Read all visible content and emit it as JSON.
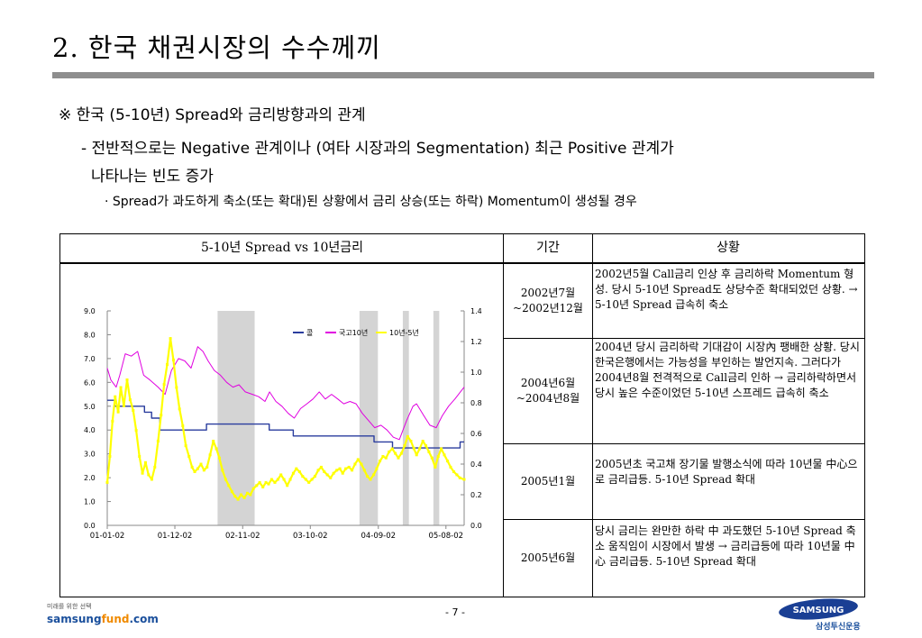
{
  "title": "2. 한국 채권시장의 수수께끼",
  "bullets": {
    "l1": "※ 한국 (5-10년) Spread와 금리방향과의 관계",
    "l2": "- 전반적으로는 Negative 관계이나 (여타 시장과의 Segmentation) 최근 Positive 관계가",
    "l3": "나타나는 빈도 증가",
    "l4": "· Spread가 과도하게 축소(또는 확대)된 상황에서 금리 상승(또는 하락) Momentum이 생성될 경우"
  },
  "table": {
    "headers": [
      "5-10년 Spread vs 10년금리",
      "기간",
      "상황"
    ],
    "rows": [
      {
        "period": "2002년7월\n~2002년12월",
        "desc": "2002년5월 Call금리 인상 후 금리하락 Momentum 형성. 당시 5-10년 Spread도 상당수준 확대되었던 상황. → 5-10년 Spread 급속히 축소"
      },
      {
        "period": "2004년6월\n~2004년8월",
        "desc": "2004년 당시 금리하락 기대감이 시장內 팽배한 상황. 당시 한국은행에서는 가능성을 부인하는 발언지속. 그러다가 2004년8월 전격적으로 Call금리 인하 → 금리하락하면서 당시 높은 수준이었던 5-10년 스프레드 급속히 축소"
      },
      {
        "period": "2005년1월",
        "desc": "2005년초 국고채 장기물 발행소식에 따라 10년물 中心으로 금리급등. 5-10년 Spread 확대"
      },
      {
        "period": "2005년6월",
        "desc": "당시 금리는 완만한 하락 中 과도했던 5-10년 Spread 축소 움직임이 시장에서 발생 → 금리급등에 따라 10년물 中心 금리급등. 5-10년 Spread 확대"
      }
    ]
  },
  "chart_data": {
    "type": "line",
    "x_ticks": [
      "01-01-02",
      "01-12-02",
      "02-11-02",
      "03-10-02",
      "04-09-02",
      "05-08-02"
    ],
    "y_left_ticks": [
      "0.0",
      "1.0",
      "2.0",
      "3.0",
      "4.0",
      "5.0",
      "6.0",
      "7.0",
      "8.0",
      "9.0"
    ],
    "y_right_ticks": [
      "0.0",
      "0.2",
      "0.4",
      "0.6",
      "0.8",
      "1.0",
      "1.2",
      "1.4"
    ],
    "ylim_left": [
      0,
      9
    ],
    "ylim_right": [
      0,
      1.4
    ],
    "xlim": [
      "2001-01-02",
      "2005-10-31"
    ],
    "legend": [
      "콜",
      "국고10년",
      "10년-5년"
    ],
    "legend_position": "top-right",
    "shaded_periods": [
      [
        "2002-07-01",
        "2002-12-31"
      ],
      [
        "2004-06-01",
        "2004-08-31"
      ],
      [
        "2005-01-01",
        "2005-01-31"
      ],
      [
        "2005-06-01",
        "2005-06-30"
      ]
    ],
    "series": [
      {
        "name": "콜",
        "axis": "left",
        "color": "#2a3d9e",
        "step": true,
        "points": [
          [
            "2001-01-02",
            5.25
          ],
          [
            "2001-02-08",
            5.0
          ],
          [
            "2001-04-01",
            5.0
          ],
          [
            "2001-07-05",
            4.75
          ],
          [
            "2001-08-09",
            4.5
          ],
          [
            "2001-09-19",
            4.0
          ],
          [
            "2002-05-07",
            4.25
          ],
          [
            "2003-03-13",
            4.0
          ],
          [
            "2003-07-10",
            3.75
          ],
          [
            "2004-08-12",
            3.5
          ],
          [
            "2004-11-11",
            3.25
          ],
          [
            "2005-10-11",
            3.5
          ],
          [
            "2005-10-31",
            3.5
          ]
        ]
      },
      {
        "name": "국고10년",
        "axis": "left",
        "color": "#e000e0",
        "points": [
          [
            "2001-01-02",
            6.6
          ],
          [
            "2001-01-20",
            6.1
          ],
          [
            "2001-02-15",
            5.8
          ],
          [
            "2001-03-05",
            6.3
          ],
          [
            "2001-04-01",
            7.2
          ],
          [
            "2001-05-01",
            7.1
          ],
          [
            "2001-06-01",
            7.3
          ],
          [
            "2001-07-01",
            6.3
          ],
          [
            "2001-08-01",
            6.1
          ],
          [
            "2001-09-10",
            5.8
          ],
          [
            "2001-10-15",
            5.5
          ],
          [
            "2001-11-15",
            6.5
          ],
          [
            "2001-12-20",
            7.0
          ],
          [
            "2002-01-20",
            6.9
          ],
          [
            "2002-02-20",
            6.6
          ],
          [
            "2002-03-25",
            7.5
          ],
          [
            "2002-04-20",
            7.3
          ],
          [
            "2002-05-15",
            6.9
          ],
          [
            "2002-06-15",
            6.5
          ],
          [
            "2002-07-15",
            6.3
          ],
          [
            "2002-08-15",
            6.0
          ],
          [
            "2002-09-15",
            5.8
          ],
          [
            "2002-10-15",
            5.9
          ],
          [
            "2002-11-15",
            5.6
          ],
          [
            "2002-12-20",
            5.5
          ],
          [
            "2003-01-20",
            5.4
          ],
          [
            "2003-02-20",
            5.2
          ],
          [
            "2003-03-15",
            5.6
          ],
          [
            "2003-04-15",
            5.2
          ],
          [
            "2003-05-15",
            5.0
          ],
          [
            "2003-06-15",
            4.7
          ],
          [
            "2003-07-15",
            4.5
          ],
          [
            "2003-08-15",
            4.9
          ],
          [
            "2003-09-15",
            5.1
          ],
          [
            "2003-10-15",
            5.3
          ],
          [
            "2003-11-15",
            5.6
          ],
          [
            "2003-12-15",
            5.3
          ],
          [
            "2004-01-15",
            5.5
          ],
          [
            "2004-02-15",
            5.3
          ],
          [
            "2004-03-15",
            5.1
          ],
          [
            "2004-04-15",
            5.2
          ],
          [
            "2004-05-15",
            5.1
          ],
          [
            "2004-06-15",
            4.7
          ],
          [
            "2004-07-15",
            4.4
          ],
          [
            "2004-08-15",
            4.1
          ],
          [
            "2004-09-15",
            4.2
          ],
          [
            "2004-10-15",
            4.0
          ],
          [
            "2004-11-15",
            3.7
          ],
          [
            "2004-12-15",
            3.6
          ],
          [
            "2005-01-20",
            4.4
          ],
          [
            "2005-02-20",
            5.0
          ],
          [
            "2005-03-10",
            5.1
          ],
          [
            "2005-04-15",
            4.6
          ],
          [
            "2005-05-15",
            4.2
          ],
          [
            "2005-06-15",
            4.1
          ],
          [
            "2005-07-15",
            4.6
          ],
          [
            "2005-08-15",
            5.0
          ],
          [
            "2005-09-15",
            5.3
          ],
          [
            "2005-10-31",
            5.8
          ]
        ]
      },
      {
        "name": "10년-5년",
        "axis": "right",
        "color": "#ffff00",
        "points": [
          [
            "2001-01-02",
            0.28
          ],
          [
            "2001-01-15",
            0.45
          ],
          [
            "2001-01-28",
            0.68
          ],
          [
            "2001-02-10",
            0.84
          ],
          [
            "2001-02-25",
            0.74
          ],
          [
            "2001-03-10",
            0.9
          ],
          [
            "2001-03-25",
            0.78
          ],
          [
            "2001-04-10",
            0.95
          ],
          [
            "2001-04-25",
            0.82
          ],
          [
            "2001-05-10",
            0.75
          ],
          [
            "2001-05-25",
            0.62
          ],
          [
            "2001-06-10",
            0.45
          ],
          [
            "2001-06-25",
            0.34
          ],
          [
            "2001-07-10",
            0.41
          ],
          [
            "2001-07-25",
            0.33
          ],
          [
            "2001-08-10",
            0.3
          ],
          [
            "2001-08-25",
            0.38
          ],
          [
            "2001-09-10",
            0.55
          ],
          [
            "2001-09-25",
            0.72
          ],
          [
            "2001-10-10",
            0.92
          ],
          [
            "2001-10-25",
            1.05
          ],
          [
            "2001-11-10",
            1.22
          ],
          [
            "2001-11-25",
            1.08
          ],
          [
            "2001-12-10",
            0.9
          ],
          [
            "2001-12-25",
            0.76
          ],
          [
            "2002-01-10",
            0.65
          ],
          [
            "2002-01-25",
            0.52
          ],
          [
            "2002-02-10",
            0.45
          ],
          [
            "2002-02-25",
            0.38
          ],
          [
            "2002-03-10",
            0.35
          ],
          [
            "2002-03-25",
            0.37
          ],
          [
            "2002-04-10",
            0.4
          ],
          [
            "2002-04-25",
            0.36
          ],
          [
            "2002-05-10",
            0.38
          ],
          [
            "2002-05-25",
            0.46
          ],
          [
            "2002-06-10",
            0.55
          ],
          [
            "2002-06-25",
            0.5
          ],
          [
            "2002-07-10",
            0.44
          ],
          [
            "2002-07-25",
            0.36
          ],
          [
            "2002-08-10",
            0.3
          ],
          [
            "2002-08-25",
            0.26
          ],
          [
            "2002-09-10",
            0.22
          ],
          [
            "2002-09-25",
            0.19
          ],
          [
            "2002-10-10",
            0.17
          ],
          [
            "2002-10-25",
            0.2
          ],
          [
            "2002-11-10",
            0.18
          ],
          [
            "2002-11-25",
            0.21
          ],
          [
            "2002-12-10",
            0.2
          ],
          [
            "2002-12-25",
            0.24
          ],
          [
            "2003-01-10",
            0.26
          ],
          [
            "2003-01-25",
            0.28
          ],
          [
            "2003-02-10",
            0.25
          ],
          [
            "2003-02-25",
            0.28
          ],
          [
            "2003-03-10",
            0.27
          ],
          [
            "2003-03-25",
            0.3
          ],
          [
            "2003-04-10",
            0.28
          ],
          [
            "2003-04-25",
            0.3
          ],
          [
            "2003-05-10",
            0.33
          ],
          [
            "2003-05-25",
            0.3
          ],
          [
            "2003-06-10",
            0.26
          ],
          [
            "2003-06-25",
            0.3
          ],
          [
            "2003-07-10",
            0.34
          ],
          [
            "2003-07-25",
            0.37
          ],
          [
            "2003-08-10",
            0.35
          ],
          [
            "2003-08-25",
            0.32
          ],
          [
            "2003-09-10",
            0.3
          ],
          [
            "2003-09-25",
            0.28
          ],
          [
            "2003-10-10",
            0.3
          ],
          [
            "2003-10-25",
            0.32
          ],
          [
            "2003-11-10",
            0.36
          ],
          [
            "2003-11-25",
            0.38
          ],
          [
            "2003-12-10",
            0.35
          ],
          [
            "2003-12-25",
            0.33
          ],
          [
            "2004-01-10",
            0.31
          ],
          [
            "2004-01-25",
            0.34
          ],
          [
            "2004-02-10",
            0.36
          ],
          [
            "2004-02-25",
            0.37
          ],
          [
            "2004-03-10",
            0.34
          ],
          [
            "2004-03-25",
            0.37
          ],
          [
            "2004-04-10",
            0.38
          ],
          [
            "2004-04-25",
            0.36
          ],
          [
            "2004-05-10",
            0.4
          ],
          [
            "2004-05-25",
            0.43
          ],
          [
            "2004-06-10",
            0.4
          ],
          [
            "2004-06-25",
            0.36
          ],
          [
            "2004-07-10",
            0.32
          ],
          [
            "2004-07-25",
            0.3
          ],
          [
            "2004-08-10",
            0.33
          ],
          [
            "2004-08-25",
            0.37
          ],
          [
            "2004-09-10",
            0.42
          ],
          [
            "2004-09-25",
            0.45
          ],
          [
            "2004-10-10",
            0.44
          ],
          [
            "2004-10-25",
            0.48
          ],
          [
            "2004-11-10",
            0.5
          ],
          [
            "2004-11-25",
            0.47
          ],
          [
            "2004-12-10",
            0.44
          ],
          [
            "2004-12-25",
            0.47
          ],
          [
            "2005-01-10",
            0.52
          ],
          [
            "2005-01-25",
            0.58
          ],
          [
            "2005-02-10",
            0.55
          ],
          [
            "2005-02-25",
            0.5
          ],
          [
            "2005-03-10",
            0.46
          ],
          [
            "2005-03-25",
            0.5
          ],
          [
            "2005-04-10",
            0.55
          ],
          [
            "2005-04-25",
            0.52
          ],
          [
            "2005-05-10",
            0.48
          ],
          [
            "2005-05-25",
            0.44
          ],
          [
            "2005-06-10",
            0.38
          ],
          [
            "2005-06-25",
            0.45
          ],
          [
            "2005-07-10",
            0.5
          ],
          [
            "2005-07-25",
            0.46
          ],
          [
            "2005-08-10",
            0.42
          ],
          [
            "2005-08-25",
            0.38
          ],
          [
            "2005-09-10",
            0.35
          ],
          [
            "2005-09-25",
            0.33
          ],
          [
            "2005-10-10",
            0.31
          ],
          [
            "2005-10-31",
            0.3
          ]
        ]
      }
    ]
  },
  "footer": {
    "tagline": "미래를 위한 선택",
    "brand_main": "samsung",
    "brand_accent": "fund",
    "brand_tail": ".com",
    "page": "- 7 -",
    "logo_text": "SAMSUNG",
    "logo_sub": "삼성투신운용"
  }
}
